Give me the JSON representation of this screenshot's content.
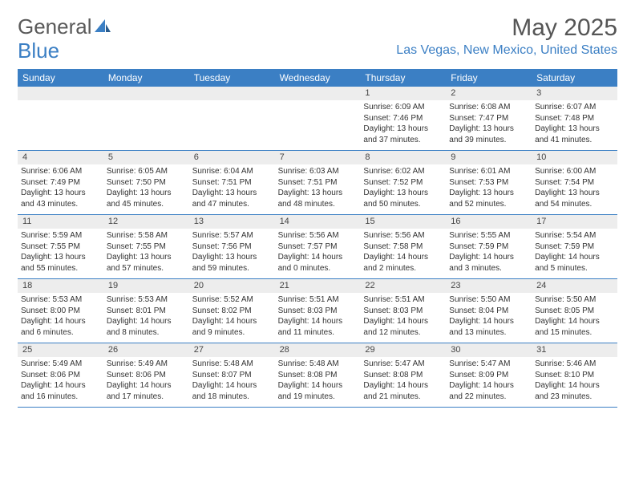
{
  "logo": {
    "text1": "General",
    "text2": "Blue"
  },
  "title": "May 2025",
  "location": "Las Vegas, New Mexico, United States",
  "colors": {
    "header_blue": "#3b7fc4",
    "row_gray": "#ededed",
    "text": "#333333",
    "title_gray": "#555555"
  },
  "daynames": [
    "Sunday",
    "Monday",
    "Tuesday",
    "Wednesday",
    "Thursday",
    "Friday",
    "Saturday"
  ],
  "weeks": [
    {
      "nums": [
        "",
        "",
        "",
        "",
        "1",
        "2",
        "3"
      ],
      "cells": [
        null,
        null,
        null,
        null,
        {
          "sunrise": "Sunrise: 6:09 AM",
          "sunset": "Sunset: 7:46 PM",
          "day1": "Daylight: 13 hours",
          "day2": "and 37 minutes."
        },
        {
          "sunrise": "Sunrise: 6:08 AM",
          "sunset": "Sunset: 7:47 PM",
          "day1": "Daylight: 13 hours",
          "day2": "and 39 minutes."
        },
        {
          "sunrise": "Sunrise: 6:07 AM",
          "sunset": "Sunset: 7:48 PM",
          "day1": "Daylight: 13 hours",
          "day2": "and 41 minutes."
        }
      ]
    },
    {
      "nums": [
        "4",
        "5",
        "6",
        "7",
        "8",
        "9",
        "10"
      ],
      "cells": [
        {
          "sunrise": "Sunrise: 6:06 AM",
          "sunset": "Sunset: 7:49 PM",
          "day1": "Daylight: 13 hours",
          "day2": "and 43 minutes."
        },
        {
          "sunrise": "Sunrise: 6:05 AM",
          "sunset": "Sunset: 7:50 PM",
          "day1": "Daylight: 13 hours",
          "day2": "and 45 minutes."
        },
        {
          "sunrise": "Sunrise: 6:04 AM",
          "sunset": "Sunset: 7:51 PM",
          "day1": "Daylight: 13 hours",
          "day2": "and 47 minutes."
        },
        {
          "sunrise": "Sunrise: 6:03 AM",
          "sunset": "Sunset: 7:51 PM",
          "day1": "Daylight: 13 hours",
          "day2": "and 48 minutes."
        },
        {
          "sunrise": "Sunrise: 6:02 AM",
          "sunset": "Sunset: 7:52 PM",
          "day1": "Daylight: 13 hours",
          "day2": "and 50 minutes."
        },
        {
          "sunrise": "Sunrise: 6:01 AM",
          "sunset": "Sunset: 7:53 PM",
          "day1": "Daylight: 13 hours",
          "day2": "and 52 minutes."
        },
        {
          "sunrise": "Sunrise: 6:00 AM",
          "sunset": "Sunset: 7:54 PM",
          "day1": "Daylight: 13 hours",
          "day2": "and 54 minutes."
        }
      ]
    },
    {
      "nums": [
        "11",
        "12",
        "13",
        "14",
        "15",
        "16",
        "17"
      ],
      "cells": [
        {
          "sunrise": "Sunrise: 5:59 AM",
          "sunset": "Sunset: 7:55 PM",
          "day1": "Daylight: 13 hours",
          "day2": "and 55 minutes."
        },
        {
          "sunrise": "Sunrise: 5:58 AM",
          "sunset": "Sunset: 7:55 PM",
          "day1": "Daylight: 13 hours",
          "day2": "and 57 minutes."
        },
        {
          "sunrise": "Sunrise: 5:57 AM",
          "sunset": "Sunset: 7:56 PM",
          "day1": "Daylight: 13 hours",
          "day2": "and 59 minutes."
        },
        {
          "sunrise": "Sunrise: 5:56 AM",
          "sunset": "Sunset: 7:57 PM",
          "day1": "Daylight: 14 hours",
          "day2": "and 0 minutes."
        },
        {
          "sunrise": "Sunrise: 5:56 AM",
          "sunset": "Sunset: 7:58 PM",
          "day1": "Daylight: 14 hours",
          "day2": "and 2 minutes."
        },
        {
          "sunrise": "Sunrise: 5:55 AM",
          "sunset": "Sunset: 7:59 PM",
          "day1": "Daylight: 14 hours",
          "day2": "and 3 minutes."
        },
        {
          "sunrise": "Sunrise: 5:54 AM",
          "sunset": "Sunset: 7:59 PM",
          "day1": "Daylight: 14 hours",
          "day2": "and 5 minutes."
        }
      ]
    },
    {
      "nums": [
        "18",
        "19",
        "20",
        "21",
        "22",
        "23",
        "24"
      ],
      "cells": [
        {
          "sunrise": "Sunrise: 5:53 AM",
          "sunset": "Sunset: 8:00 PM",
          "day1": "Daylight: 14 hours",
          "day2": "and 6 minutes."
        },
        {
          "sunrise": "Sunrise: 5:53 AM",
          "sunset": "Sunset: 8:01 PM",
          "day1": "Daylight: 14 hours",
          "day2": "and 8 minutes."
        },
        {
          "sunrise": "Sunrise: 5:52 AM",
          "sunset": "Sunset: 8:02 PM",
          "day1": "Daylight: 14 hours",
          "day2": "and 9 minutes."
        },
        {
          "sunrise": "Sunrise: 5:51 AM",
          "sunset": "Sunset: 8:03 PM",
          "day1": "Daylight: 14 hours",
          "day2": "and 11 minutes."
        },
        {
          "sunrise": "Sunrise: 5:51 AM",
          "sunset": "Sunset: 8:03 PM",
          "day1": "Daylight: 14 hours",
          "day2": "and 12 minutes."
        },
        {
          "sunrise": "Sunrise: 5:50 AM",
          "sunset": "Sunset: 8:04 PM",
          "day1": "Daylight: 14 hours",
          "day2": "and 13 minutes."
        },
        {
          "sunrise": "Sunrise: 5:50 AM",
          "sunset": "Sunset: 8:05 PM",
          "day1": "Daylight: 14 hours",
          "day2": "and 15 minutes."
        }
      ]
    },
    {
      "nums": [
        "25",
        "26",
        "27",
        "28",
        "29",
        "30",
        "31"
      ],
      "cells": [
        {
          "sunrise": "Sunrise: 5:49 AM",
          "sunset": "Sunset: 8:06 PM",
          "day1": "Daylight: 14 hours",
          "day2": "and 16 minutes."
        },
        {
          "sunrise": "Sunrise: 5:49 AM",
          "sunset": "Sunset: 8:06 PM",
          "day1": "Daylight: 14 hours",
          "day2": "and 17 minutes."
        },
        {
          "sunrise": "Sunrise: 5:48 AM",
          "sunset": "Sunset: 8:07 PM",
          "day1": "Daylight: 14 hours",
          "day2": "and 18 minutes."
        },
        {
          "sunrise": "Sunrise: 5:48 AM",
          "sunset": "Sunset: 8:08 PM",
          "day1": "Daylight: 14 hours",
          "day2": "and 19 minutes."
        },
        {
          "sunrise": "Sunrise: 5:47 AM",
          "sunset": "Sunset: 8:08 PM",
          "day1": "Daylight: 14 hours",
          "day2": "and 21 minutes."
        },
        {
          "sunrise": "Sunrise: 5:47 AM",
          "sunset": "Sunset: 8:09 PM",
          "day1": "Daylight: 14 hours",
          "day2": "and 22 minutes."
        },
        {
          "sunrise": "Sunrise: 5:46 AM",
          "sunset": "Sunset: 8:10 PM",
          "day1": "Daylight: 14 hours",
          "day2": "and 23 minutes."
        }
      ]
    }
  ]
}
